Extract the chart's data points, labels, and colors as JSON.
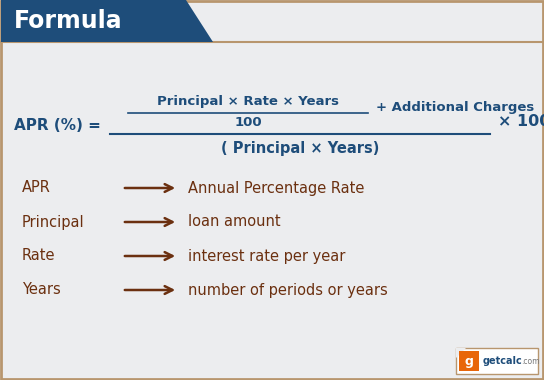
{
  "title": "Formula",
  "title_bg_color": "#1e4d7a",
  "title_text_color": "#ffffff",
  "bg_color": "#ecedef",
  "border_color": "#b8966e",
  "formula_color": "#1e4d7a",
  "term_color": "#6b3010",
  "desc_color": "#6b3010",
  "arrow_color": "#6b3010",
  "terms": [
    "APR",
    "Principal",
    "Rate",
    "Years"
  ],
  "descriptions": [
    "Annual Percentage Rate",
    "loan amount",
    "interest rate per year",
    "number of periods or years"
  ],
  "logo_orange": "#e8660a",
  "logo_blue": "#1e4d7a",
  "logo_gray": "#777777"
}
